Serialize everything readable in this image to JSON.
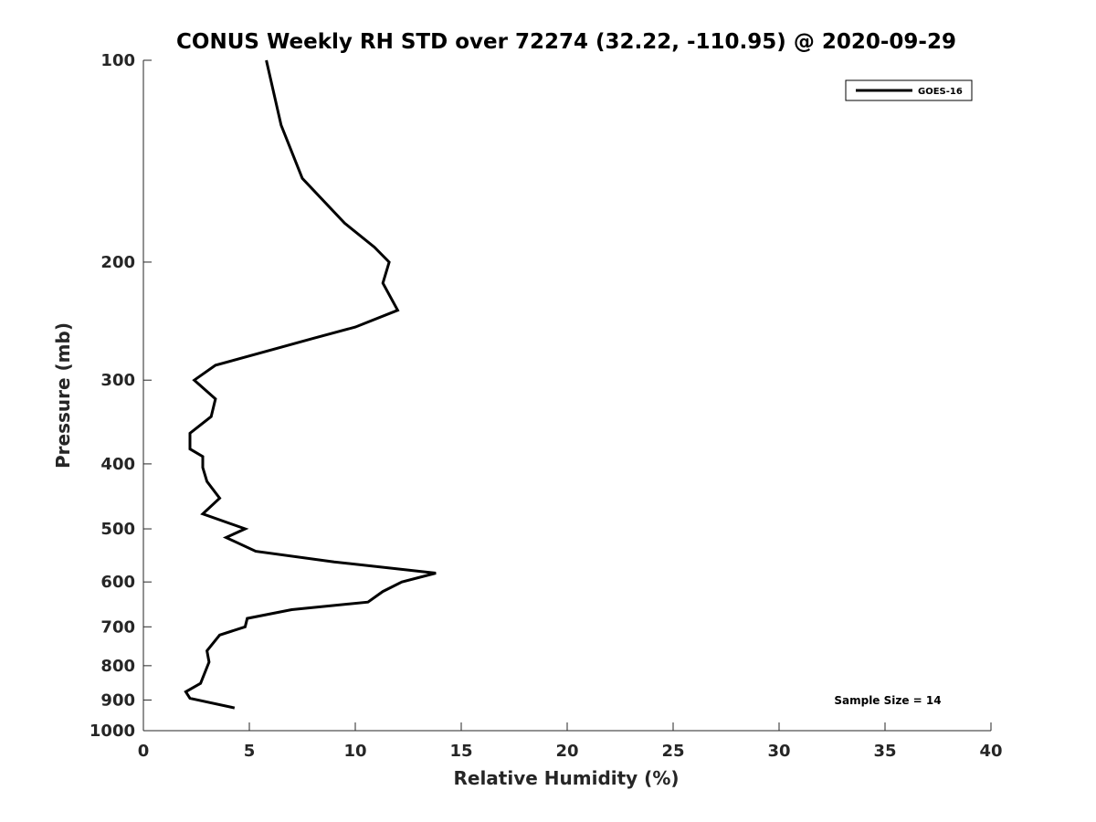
{
  "chart_data": {
    "type": "line",
    "title": "CONUS Weekly RH STD over 72274 (32.22, -110.95) @ 2020-09-29",
    "xlabel": "Relative Humidity (%)",
    "ylabel": "Pressure (mb)",
    "xlim": [
      0,
      40
    ],
    "ylim": [
      100,
      1000
    ],
    "y_scale": "log",
    "y_reversed": true,
    "grid": false,
    "legend_position": "top-right",
    "x_ticks": [
      0,
      5,
      10,
      15,
      20,
      25,
      30,
      35,
      40
    ],
    "y_ticks": [
      100,
      200,
      300,
      400,
      500,
      600,
      700,
      800,
      900,
      1000
    ],
    "annotation": "Sample Size = 14",
    "colors": {
      "series": "#000000",
      "axis": "#262626"
    },
    "series": [
      {
        "name": "GOES-16",
        "points": [
          {
            "x": 5.8,
            "p": 100
          },
          {
            "x": 6.5,
            "p": 125
          },
          {
            "x": 7.5,
            "p": 150
          },
          {
            "x": 9.5,
            "p": 175
          },
          {
            "x": 10.9,
            "p": 190
          },
          {
            "x": 11.6,
            "p": 200
          },
          {
            "x": 11.3,
            "p": 215
          },
          {
            "x": 12.0,
            "p": 236
          },
          {
            "x": 10.0,
            "p": 250
          },
          {
            "x": 8.0,
            "p": 260
          },
          {
            "x": 3.4,
            "p": 285
          },
          {
            "x": 2.4,
            "p": 300
          },
          {
            "x": 3.4,
            "p": 320
          },
          {
            "x": 3.2,
            "p": 340
          },
          {
            "x": 2.2,
            "p": 360
          },
          {
            "x": 2.2,
            "p": 380
          },
          {
            "x": 2.8,
            "p": 390
          },
          {
            "x": 2.8,
            "p": 405
          },
          {
            "x": 3.0,
            "p": 425
          },
          {
            "x": 3.6,
            "p": 450
          },
          {
            "x": 2.8,
            "p": 475
          },
          {
            "x": 4.8,
            "p": 500
          },
          {
            "x": 3.9,
            "p": 515
          },
          {
            "x": 5.3,
            "p": 540
          },
          {
            "x": 9.0,
            "p": 560
          },
          {
            "x": 13.8,
            "p": 582
          },
          {
            "x": 12.2,
            "p": 600
          },
          {
            "x": 11.3,
            "p": 620
          },
          {
            "x": 10.6,
            "p": 643
          },
          {
            "x": 7.0,
            "p": 660
          },
          {
            "x": 4.9,
            "p": 680
          },
          {
            "x": 4.8,
            "p": 700
          },
          {
            "x": 3.6,
            "p": 720
          },
          {
            "x": 3.0,
            "p": 760
          },
          {
            "x": 3.1,
            "p": 790
          },
          {
            "x": 2.7,
            "p": 850
          },
          {
            "x": 2.0,
            "p": 875
          },
          {
            "x": 2.2,
            "p": 895
          },
          {
            "x": 4.3,
            "p": 925
          }
        ]
      }
    ]
  }
}
